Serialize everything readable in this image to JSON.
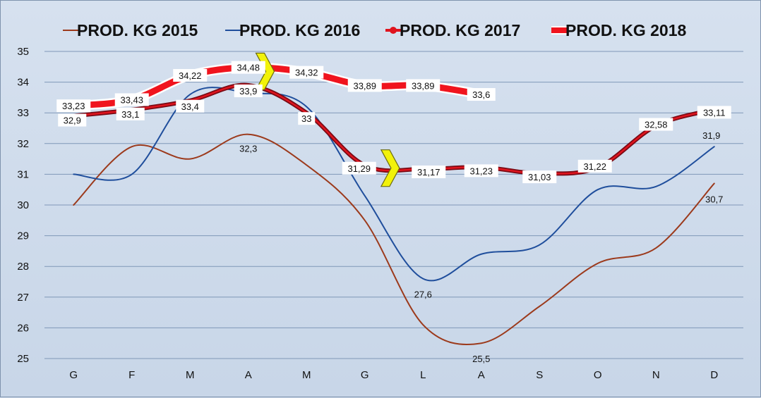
{
  "chart_data": {
    "type": "line",
    "title": "",
    "xlabel": "",
    "ylabel": "",
    "categories": [
      "G",
      "F",
      "M",
      "A",
      "M",
      "G",
      "L",
      "A",
      "S",
      "O",
      "N",
      "D"
    ],
    "ylim": [
      25,
      35
    ],
    "yticks": [
      25,
      26,
      27,
      28,
      29,
      30,
      31,
      32,
      33,
      34,
      35
    ],
    "grid": true,
    "legend_position": "top",
    "series": [
      {
        "name": "PROD. KG 2015",
        "color": "#9c3a1c",
        "style": "thin",
        "values": [
          30,
          31.9,
          31.5,
          32.3,
          31.3,
          29.5,
          26.1,
          25.5,
          26.7,
          28.1,
          28.6,
          30.7
        ],
        "labels": [
          null,
          null,
          null,
          "32,3",
          null,
          null,
          null,
          "25,5",
          null,
          null,
          null,
          "30,7"
        ]
      },
      {
        "name": "PROD. KG 2016",
        "color": "#1f4e9c",
        "style": "thin",
        "values": [
          31.0,
          31.0,
          33.6,
          33.65,
          33.2,
          30.3,
          27.6,
          28.4,
          28.7,
          30.5,
          30.6,
          31.9
        ],
        "labels": [
          null,
          null,
          null,
          null,
          null,
          null,
          "27,6",
          null,
          null,
          null,
          null,
          "31,9"
        ]
      },
      {
        "name": "PROD. KG 2017",
        "color": "#e0141e",
        "outline": "#7a0a14",
        "style": "marker",
        "values": [
          32.9,
          33.1,
          33.4,
          33.9,
          33,
          31.29,
          31.17,
          31.23,
          31.03,
          31.22,
          32.58,
          33.11
        ],
        "labels": [
          "32,9",
          "33,1",
          "33,4",
          "33,9",
          "33",
          "31,29",
          "31,17",
          "31,23",
          "31,03",
          "31,22",
          "32,58",
          "33,11"
        ]
      },
      {
        "name": "PROD. KG 2018",
        "color": "#f0141e",
        "style": "thick",
        "values": [
          33.23,
          33.43,
          34.22,
          34.48,
          34.32,
          33.89,
          33.89,
          33.6,
          null,
          null,
          null,
          null
        ],
        "labels": [
          "33,23",
          "33,43",
          "34,22",
          "34,48",
          "34,32",
          "33,89",
          "33,89",
          "33,6",
          null,
          null,
          null,
          null
        ]
      }
    ],
    "annotations": [
      {
        "type": "chevron",
        "color": "#f2f20a",
        "x_index": 3.3,
        "y": 34.35
      },
      {
        "type": "chevron",
        "color": "#f2f20a",
        "x_index": 5.45,
        "y": 31.2
      }
    ]
  }
}
